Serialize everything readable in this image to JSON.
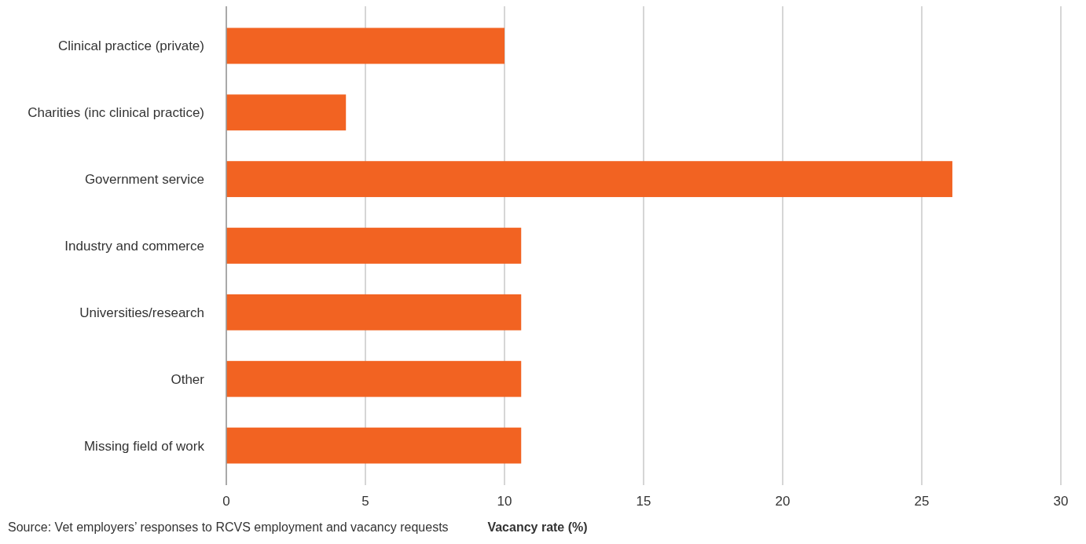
{
  "chart_data": {
    "type": "bar",
    "orientation": "horizontal",
    "xlabel": "Vacancy rate (%)",
    "categories": [
      "Clinical practice (private)",
      "Charities (inc clinical practice)",
      "Government service",
      "Industry and commerce",
      "Universities/research",
      "Other",
      "Missing field of work"
    ],
    "values": [
      10.0,
      4.3,
      26.1,
      10.6,
      10.6,
      10.6,
      10.6
    ],
    "color": "#f26322",
    "xlim": [
      0,
      30
    ],
    "xticks": [
      0,
      5,
      10,
      15,
      20,
      25,
      30
    ],
    "grid": "x",
    "annotations": [
      "Source: Vet employers’ responses to RCVS employment and vacancy requests"
    ]
  }
}
